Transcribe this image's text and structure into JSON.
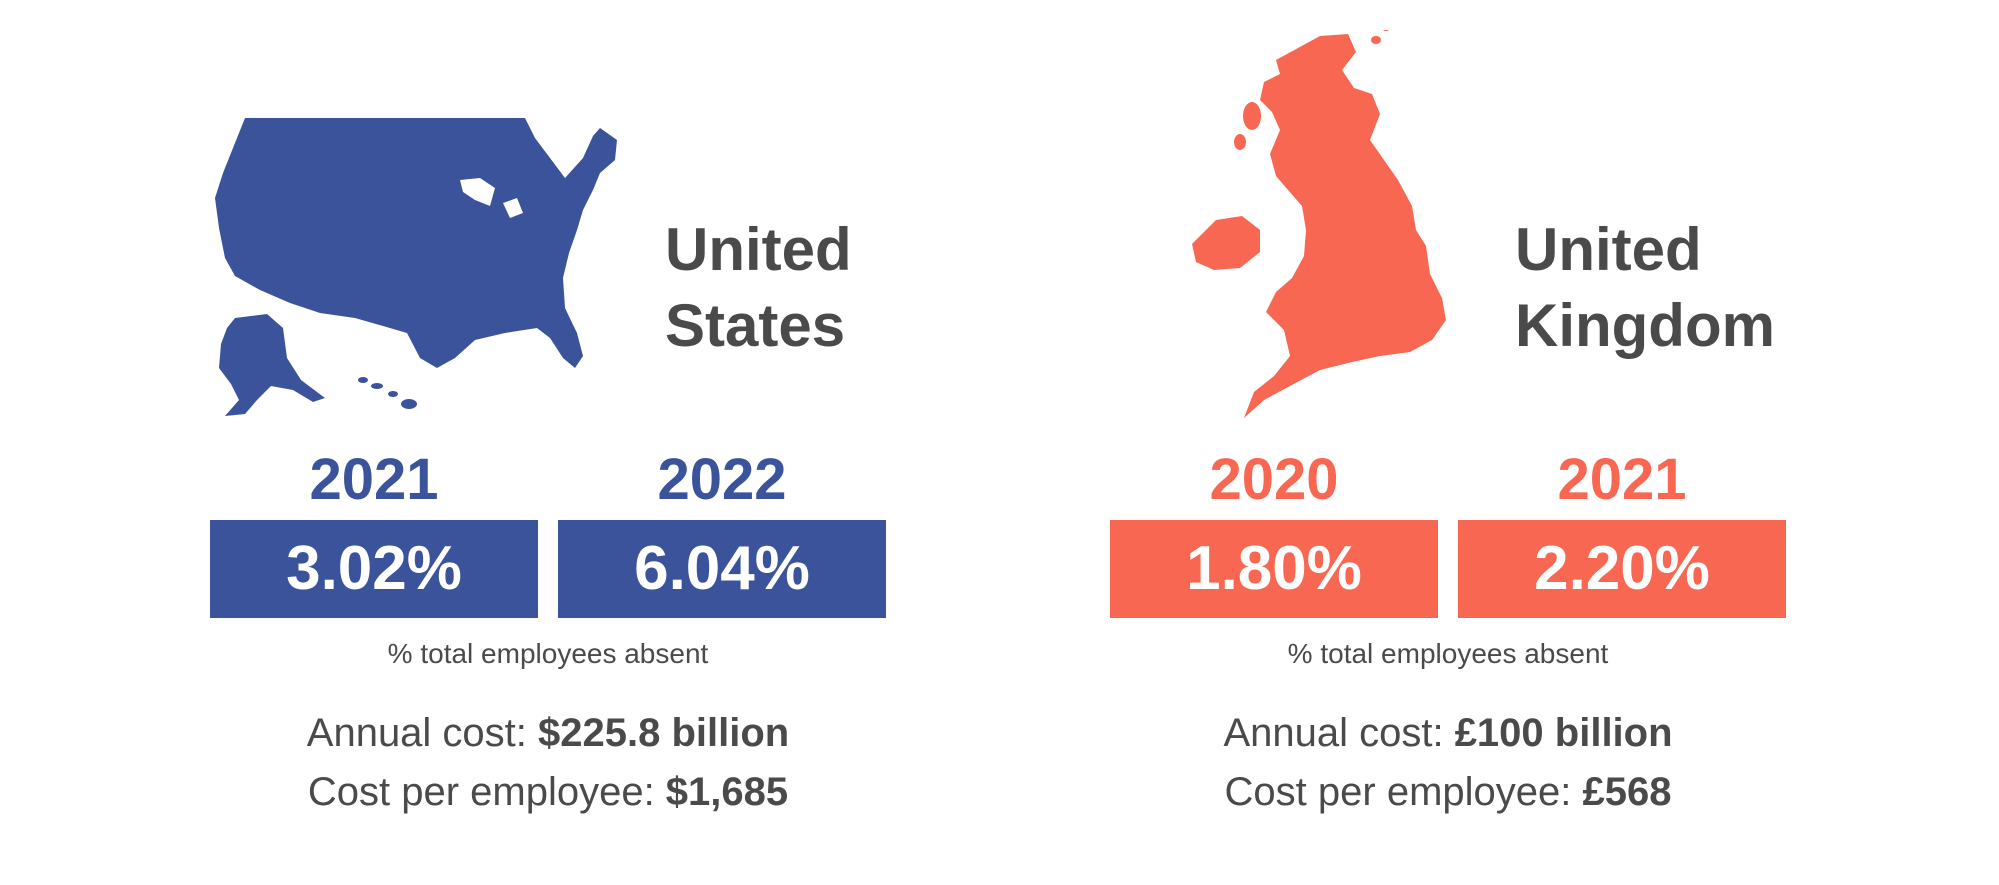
{
  "colors": {
    "us": "#3a539b",
    "uk": "#f86752",
    "text": "#4a4a4a"
  },
  "us": {
    "name_line1": "United",
    "name_line2": "States",
    "map_icon": "usa-map-icon",
    "year1": "2021",
    "year2": "2022",
    "value1": "3.02%",
    "value2": "6.04%",
    "caption": "% total employees absent",
    "annual_label": "Annual cost: ",
    "annual_value": "$225.8 billion",
    "per_employee_label": "Cost per employee: ",
    "per_employee_value": "$1,685"
  },
  "uk": {
    "name_line1": "United",
    "name_line2": "Kingdom",
    "map_icon": "uk-map-icon",
    "year1": "2020",
    "year2": "2021",
    "value1": "1.80%",
    "value2": "2.20%",
    "caption": "% total employees absent",
    "annual_label": "Annual cost: ",
    "annual_value": "£100 billion",
    "per_employee_label": "Cost per employee: ",
    "per_employee_value": "£568"
  }
}
